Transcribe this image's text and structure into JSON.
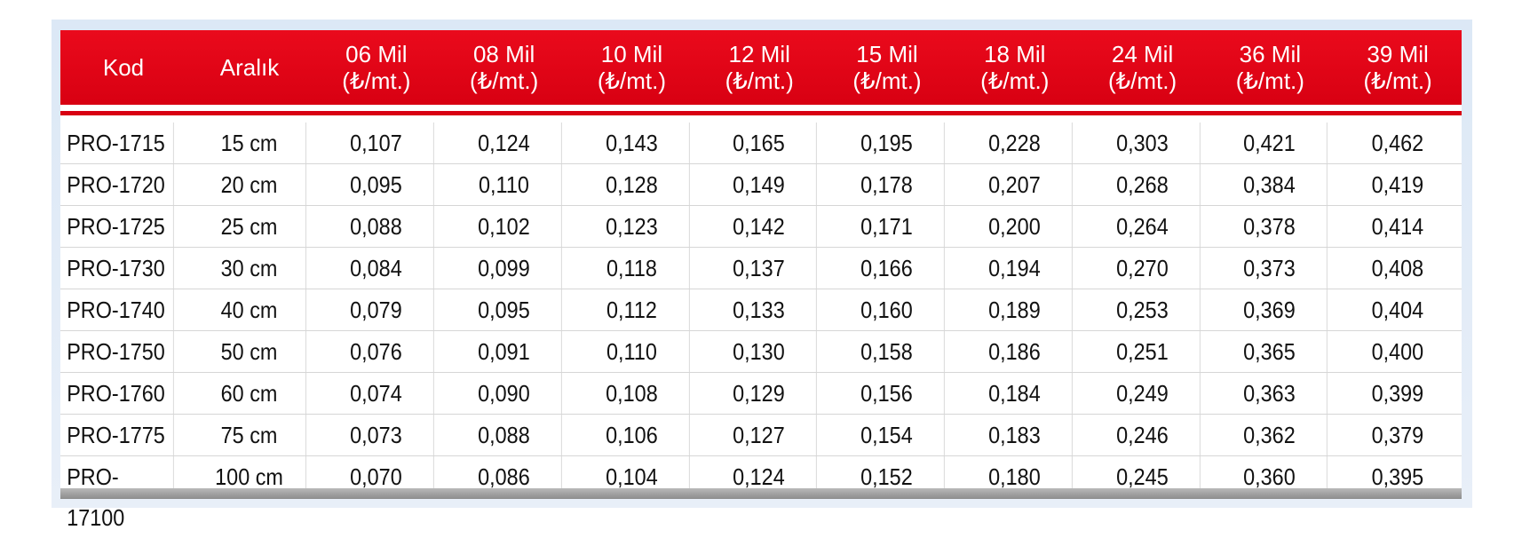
{
  "table": {
    "headers": [
      {
        "line1": "Kod",
        "line2": ""
      },
      {
        "line1": "Aralık",
        "line2": ""
      },
      {
        "line1": "06 Mil",
        "line2": "(₺/mt.)"
      },
      {
        "line1": "08 Mil",
        "line2": "(₺/mt.)"
      },
      {
        "line1": "10 Mil",
        "line2": "(₺/mt.)"
      },
      {
        "line1": "12 Mil",
        "line2": "(₺/mt.)"
      },
      {
        "line1": "15 Mil",
        "line2": "(₺/mt.)"
      },
      {
        "line1": "18 Mil",
        "line2": "(₺/mt.)"
      },
      {
        "line1": "24 Mil",
        "line2": "(₺/mt.)"
      },
      {
        "line1": "36 Mil",
        "line2": "(₺/mt.)"
      },
      {
        "line1": "39 Mil",
        "line2": "(₺/mt.)"
      }
    ],
    "rows": [
      [
        "PRO-1715",
        "15 cm",
        "0,107",
        "0,124",
        "0,143",
        "0,165",
        "0,195",
        "0,228",
        "0,303",
        "0,421",
        "0,462"
      ],
      [
        "PRO-1720",
        "20 cm",
        "0,095",
        "0,110",
        "0,128",
        "0,149",
        "0,178",
        "0,207",
        "0,268",
        "0,384",
        "0,419"
      ],
      [
        "PRO-1725",
        "25 cm",
        "0,088",
        "0,102",
        "0,123",
        "0,142",
        "0,171",
        "0,200",
        "0,264",
        "0,378",
        "0,414"
      ],
      [
        "PRO-1730",
        "30 cm",
        "0,084",
        "0,099",
        "0,118",
        "0,137",
        "0,166",
        "0,194",
        "0,270",
        "0,373",
        "0,408"
      ],
      [
        "PRO-1740",
        "40 cm",
        "0,079",
        "0,095",
        "0,112",
        "0,133",
        "0,160",
        "0,189",
        "0,253",
        "0,369",
        "0,404"
      ],
      [
        "PRO-1750",
        "50 cm",
        "0,076",
        "0,091",
        "0,110",
        "0,130",
        "0,158",
        "0,186",
        "0,251",
        "0,365",
        "0,400"
      ],
      [
        "PRO-1760",
        "60 cm",
        "0,074",
        "0,090",
        "0,108",
        "0,129",
        "0,156",
        "0,184",
        "0,249",
        "0,363",
        "0,399"
      ],
      [
        "PRO-1775",
        "75 cm",
        "0,073",
        "0,088",
        "0,106",
        "0,127",
        "0,154",
        "0,183",
        "0,246",
        "0,362",
        "0,379"
      ],
      [
        "PRO-17100",
        "100 cm",
        "0,070",
        "0,086",
        "0,104",
        "0,124",
        "0,152",
        "0,180",
        "0,245",
        "0,360",
        "0,395"
      ]
    ]
  },
  "colors": {
    "header_red": "#e2001a",
    "grid": "#d6d6d6",
    "frame": "#dce8f6"
  }
}
